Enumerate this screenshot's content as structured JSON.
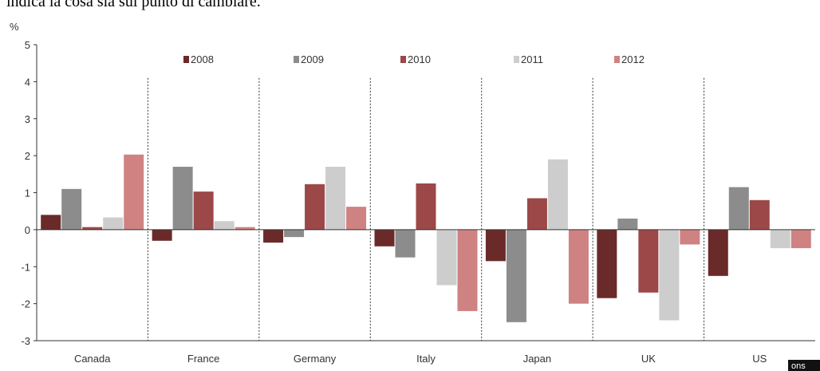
{
  "header_text": "indica la cosa sia sul punto di cambiare.",
  "source_badge": "ons",
  "colors": {
    "2008": "#6b2a2a",
    "2009": "#8c8c8c",
    "2010": "#9c4848",
    "2011": "#cdcdcd",
    "2012": "#cf8282"
  },
  "chart_data": {
    "type": "bar",
    "ylabel": "%",
    "ylim": [
      -3,
      5
    ],
    "yticks": [
      "5",
      "4",
      "3",
      "2",
      "1",
      "0",
      "-1",
      "-2",
      "-3"
    ],
    "categories": [
      "Canada",
      "France",
      "Germany",
      "Italy",
      "Japan",
      "UK",
      "US"
    ],
    "legend_position": "top",
    "grid": false,
    "series": [
      {
        "name": "2008",
        "values": [
          0.4,
          -0.3,
          -0.35,
          -0.45,
          -0.85,
          -1.85,
          -1.25
        ]
      },
      {
        "name": "2009",
        "values": [
          1.1,
          1.7,
          -0.2,
          -0.75,
          -2.5,
          0.3,
          1.15
        ]
      },
      {
        "name": "2010",
        "values": [
          0.07,
          1.03,
          1.23,
          1.25,
          0.85,
          -1.7,
          0.8
        ]
      },
      {
        "name": "2011",
        "values": [
          0.33,
          0.23,
          1.7,
          -1.5,
          1.9,
          -2.45,
          -0.5
        ]
      },
      {
        "name": "2012",
        "values": [
          2.03,
          0.07,
          0.62,
          -2.2,
          -2.0,
          -0.4,
          -0.5
        ]
      }
    ]
  }
}
